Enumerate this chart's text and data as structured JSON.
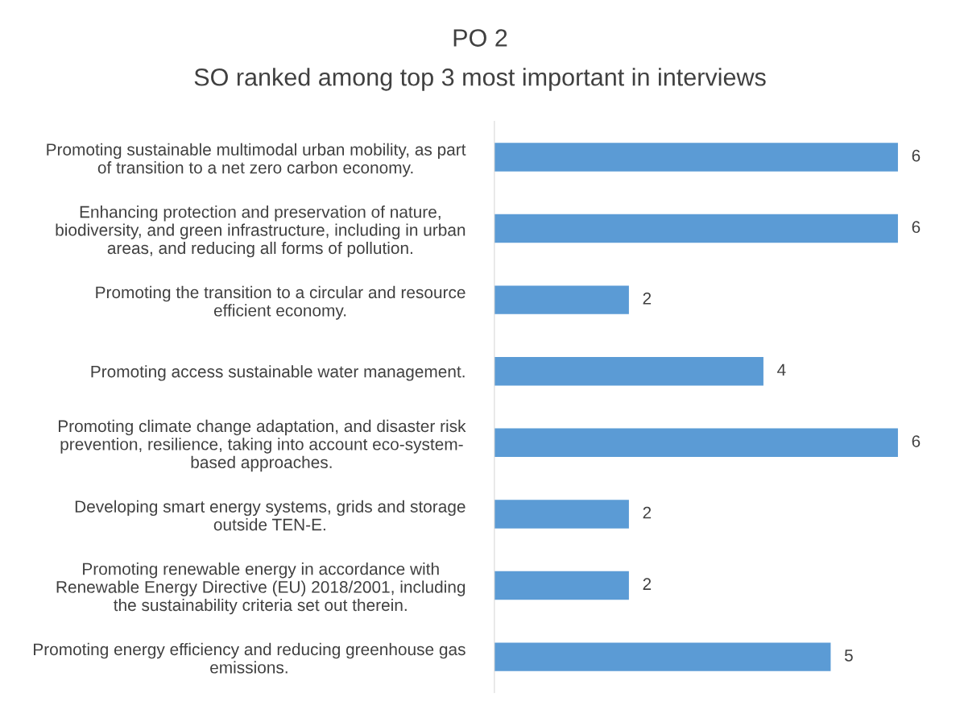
{
  "chart_data": {
    "type": "bar",
    "orientation": "horizontal",
    "title": "PO 2",
    "subtitle": "SO ranked among top 3 most important in interviews",
    "categories": [
      "Promoting sustainable multimodal urban mobility, as part\nof transition to a net zero carbon economy.",
      "Enhancing protection and preservation of nature,\nbiodiversity, and green infrastructure, including in urban\nareas, and reducing all forms of pollution.",
      "Promoting the transition to a circular and resource\nefficient economy.",
      "Promoting access sustainable water management.",
      "Promoting climate change adaptation, and disaster risk\nprevention, resilience, taking into account eco-system-\nbased approaches.",
      "Developing smart energy systems, grids and storage\noutside TEN-E.",
      "Promoting renewable energy in accordance with\nRenewable Energy Directive (EU) 2018/2001, including\nthe sustainability criteria set out therein.",
      "Promoting energy efficiency and reducing greenhouse gas\nemissions."
    ],
    "values": [
      6,
      6,
      2,
      4,
      6,
      2,
      2,
      5
    ],
    "color": "#5b9bd5",
    "data_labels": true,
    "tick_labels": "y",
    "grid": false,
    "legend": false
  }
}
